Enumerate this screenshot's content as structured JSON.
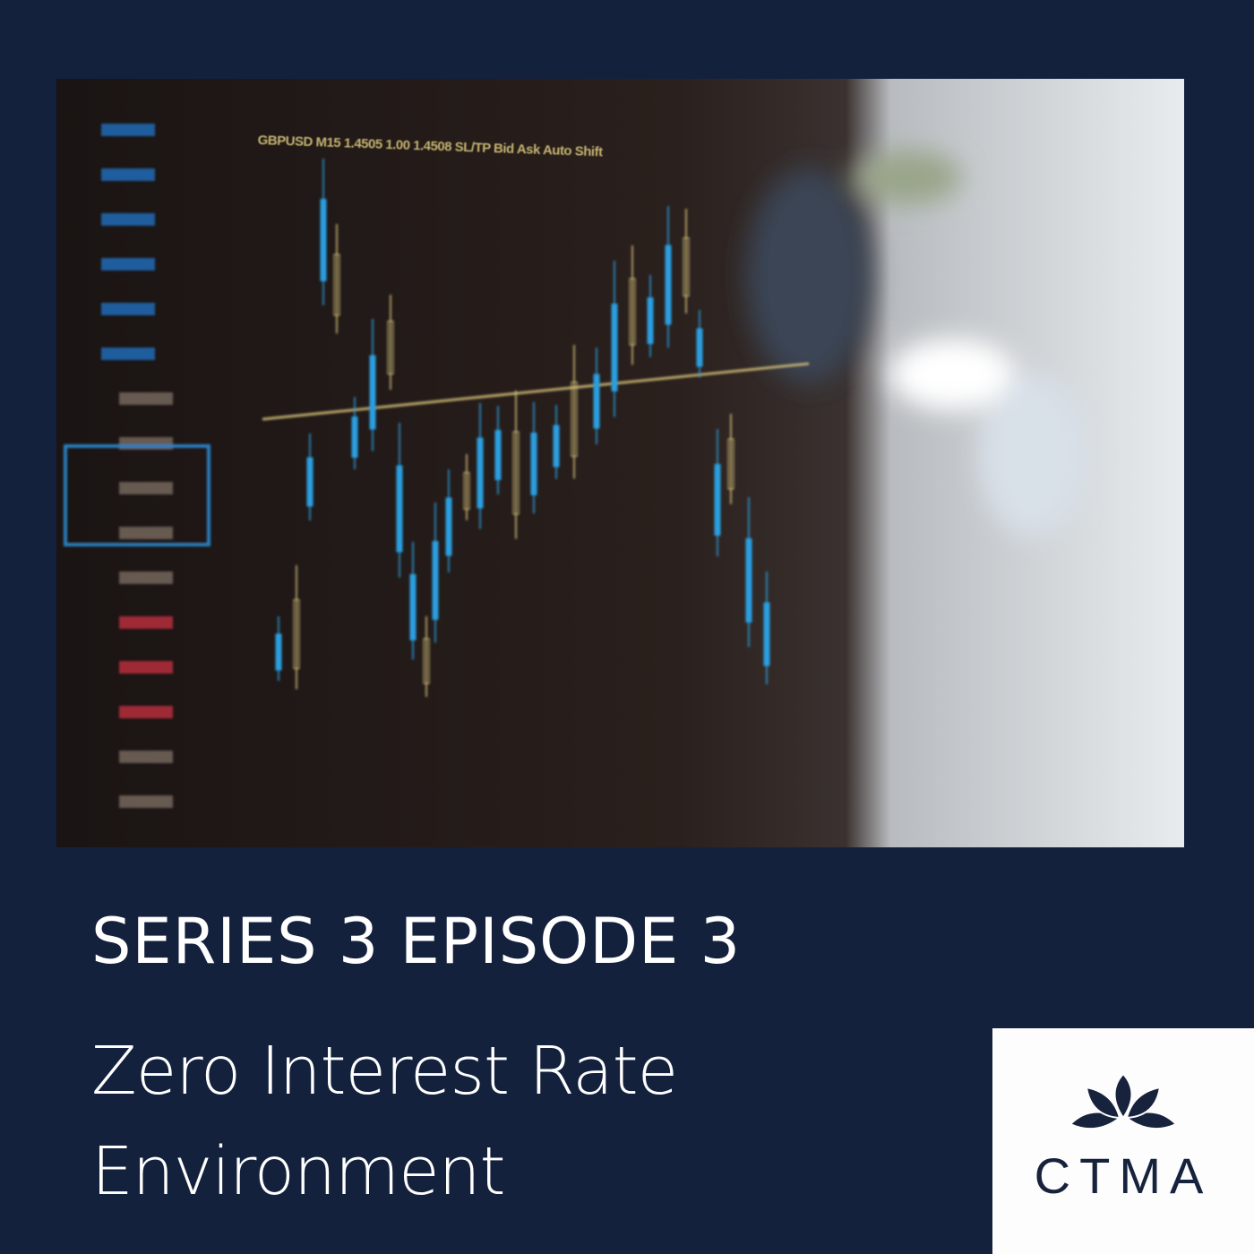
{
  "cover": {
    "series_label": "SERIES 3 EPISODE 3",
    "title_lines": [
      "Zero Interest Rate",
      "Environment"
    ],
    "photo": {
      "subject": "blurred trading-chart monitor with candlesticks",
      "text_in_photo": "GBPUSD M15 1.4505 1.00 1.4508 SL/TP Bid Ask Auto Shift"
    },
    "logo": {
      "text": "CTMA",
      "icon": "lotus-icon"
    }
  },
  "colors": {
    "background": "#14213d",
    "logo_ink": "#17233c",
    "logo_bg": "#fdfdfd",
    "candle_blue": "#2a9fe0",
    "candle_gold": "#d6c27a"
  }
}
